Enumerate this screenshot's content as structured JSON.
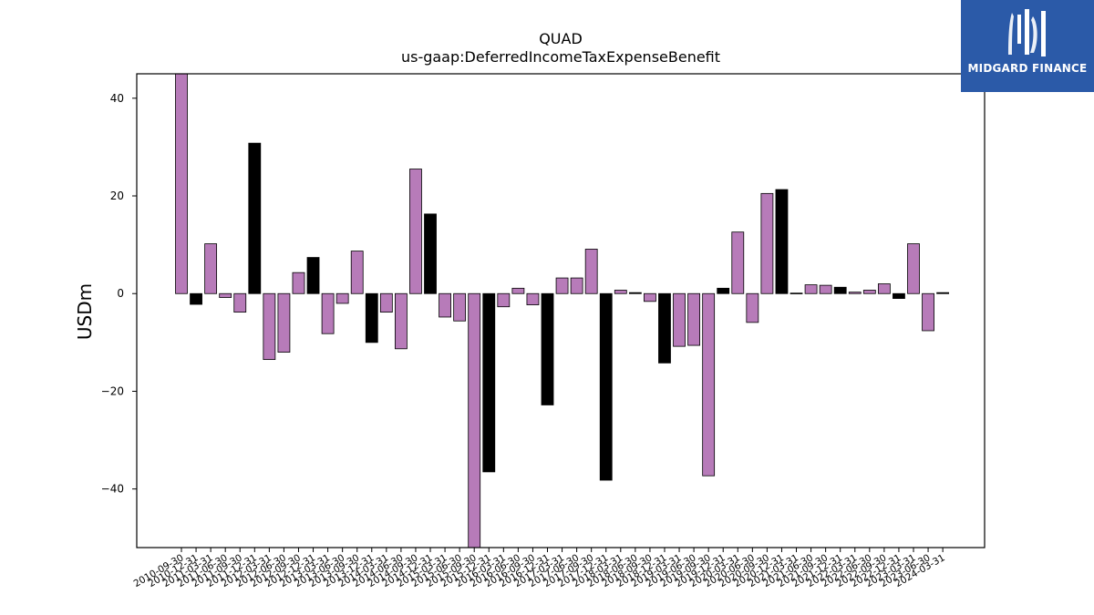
{
  "chart_data": {
    "type": "bar",
    "title": "QUAD",
    "subtitle": "us-gaap:DeferredIncomeTaxExpenseBenefit",
    "ylabel": "USDm",
    "xlabel": "",
    "ylim": [
      -52,
      45
    ],
    "yticks": [
      40,
      20,
      0,
      -20,
      -40
    ],
    "grid": false,
    "colors": {
      "default": "#b77bb9",
      "highlight": "#000000"
    },
    "categories": [
      "2010-09-30",
      "2010-12-31",
      "2011-03-31",
      "2011-06-30",
      "2011-09-30",
      "2011-12-31",
      "2012-03-31",
      "2012-06-30",
      "2012-09-30",
      "2012-12-31",
      "2013-03-31",
      "2013-06-30",
      "2013-09-30",
      "2013-12-31",
      "2014-03-31",
      "2014-06-30",
      "2014-09-30",
      "2014-12-31",
      "2015-03-31",
      "2015-06-30",
      "2015-09-30",
      "2015-12-31",
      "2016-03-31",
      "2016-06-30",
      "2016-09-30",
      "2016-12-31",
      "2017-03-31",
      "2017-06-30",
      "2017-09-30",
      "2017-12-31",
      "2018-03-31",
      "2018-06-30",
      "2018-09-30",
      "2018-12-31",
      "2019-03-31",
      "2019-06-30",
      "2019-09-30",
      "2019-12-31",
      "2020-03-31",
      "2020-06-30",
      "2020-09-30",
      "2020-12-31",
      "2021-03-31",
      "2021-06-30",
      "2021-09-30",
      "2021-12-31",
      "2022-03-31",
      "2022-06-30",
      "2022-09-30",
      "2022-12-31",
      "2023-03-31",
      "2023-06-30",
      "2024-03-31"
    ],
    "values": [
      45,
      -2.2,
      10.2,
      -0.8,
      -3.8,
      30.8,
      -13.5,
      -12,
      4.3,
      7.4,
      -8.2,
      -2,
      8.7,
      -10,
      -3.8,
      -11.3,
      25.5,
      16.3,
      -4.8,
      -5.6,
      -52,
      -36.5,
      -2.7,
      1.1,
      -2.3,
      -22.8,
      3.2,
      3.2,
      9.1,
      -38.2,
      0.7,
      0.2,
      -1.6,
      -14.2,
      -10.8,
      -10.6,
      -37.3,
      1.1,
      12.6,
      -5.9,
      20.5,
      21.3,
      0.1,
      1.8,
      1.7,
      1.3,
      0.3,
      0.7,
      2,
      -1,
      10.2,
      -7.6,
      0.2
    ],
    "highlight": [
      false,
      true,
      false,
      false,
      false,
      true,
      false,
      false,
      false,
      true,
      false,
      false,
      false,
      true,
      false,
      false,
      false,
      true,
      false,
      false,
      false,
      true,
      false,
      false,
      false,
      true,
      false,
      false,
      false,
      true,
      false,
      true,
      false,
      true,
      false,
      false,
      false,
      true,
      false,
      false,
      false,
      true,
      false,
      false,
      false,
      true,
      false,
      false,
      false,
      true,
      false,
      false,
      true
    ]
  },
  "logo": {
    "text": "MIDGARD FINANCE",
    "background": "#2b5aa8"
  }
}
